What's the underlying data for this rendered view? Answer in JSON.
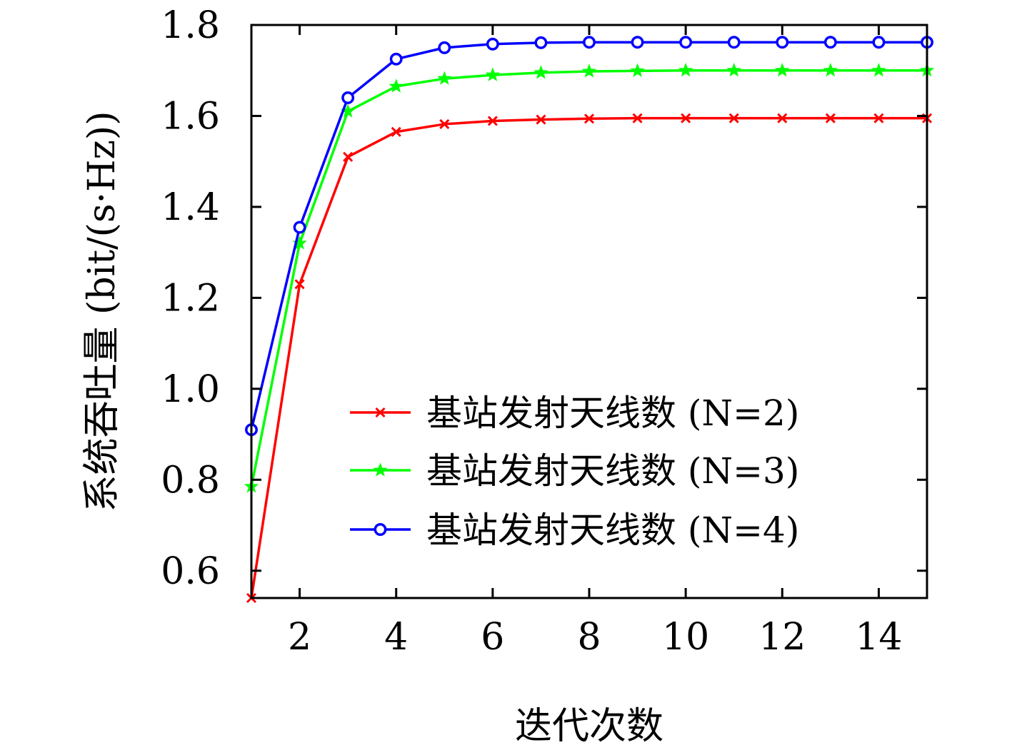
{
  "chart_data": {
    "type": "line",
    "xlabel": "迭代次数",
    "ylabel": "系统吞吐量 (bit/(s·Hz))",
    "xlim": [
      1,
      15
    ],
    "ylim": [
      0.54,
      1.8
    ],
    "xticks": [
      2,
      4,
      6,
      8,
      10,
      12,
      14
    ],
    "xtick_labels": [
      "2",
      "4",
      "6",
      "8",
      "10",
      "12",
      "14"
    ],
    "yticks": [
      0.6,
      0.8,
      1.0,
      1.2,
      1.4,
      1.6,
      1.8
    ],
    "ytick_labels": [
      "0.6",
      "0.8",
      "1.0",
      "1.2",
      "1.4",
      "1.6",
      "1.8"
    ],
    "grid": false,
    "legend_position": "bottom-right",
    "x": [
      1,
      2,
      3,
      4,
      5,
      6,
      7,
      8,
      9,
      10,
      11,
      12,
      13,
      14,
      15
    ],
    "series": [
      {
        "name": "基站发射天线数 (N=2)",
        "color": "#ff0000",
        "marker": "x",
        "values": [
          0.54,
          1.23,
          1.51,
          1.565,
          1.582,
          1.589,
          1.592,
          1.594,
          1.595,
          1.595,
          1.595,
          1.595,
          1.595,
          1.595,
          1.595
        ]
      },
      {
        "name": "基站发射天线数 (N=3)",
        "color": "#00ff00",
        "marker": "star",
        "values": [
          0.785,
          1.32,
          1.61,
          1.665,
          1.682,
          1.69,
          1.695,
          1.698,
          1.699,
          1.7,
          1.7,
          1.7,
          1.7,
          1.7,
          1.7
        ]
      },
      {
        "name": "基站发射天线数 (N=4)",
        "color": "#0000ff",
        "marker": "circle",
        "values": [
          0.91,
          1.355,
          1.64,
          1.725,
          1.75,
          1.758,
          1.761,
          1.762,
          1.762,
          1.762,
          1.762,
          1.762,
          1.762,
          1.762,
          1.762
        ]
      }
    ]
  }
}
